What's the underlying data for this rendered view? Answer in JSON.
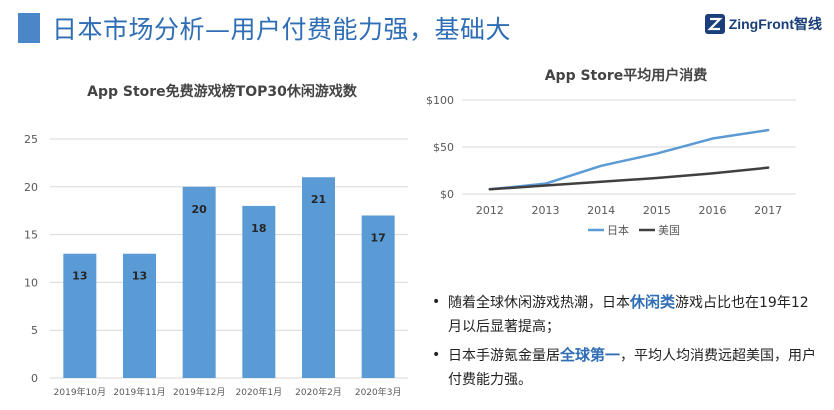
{
  "header": {
    "title": "日本市场分析—用户付费能力强，基础大"
  },
  "logo": {
    "text": "ZingFront智线",
    "icon": "zingfront-logo-icon"
  },
  "chart_data": [
    {
      "type": "bar",
      "title": "App Store免费游戏榜TOP30休闲游戏数",
      "categories": [
        "2019年10月",
        "2019年11月",
        "2019年12月",
        "2020年1月",
        "2020年2月",
        "2020年3月"
      ],
      "values": [
        13,
        13,
        20,
        18,
        21,
        17
      ],
      "yticks": [
        "0",
        "5",
        "10",
        "15",
        "20",
        "25"
      ],
      "ylim": [
        0,
        25
      ],
      "grid": true,
      "color": "#5b9bd5"
    },
    {
      "type": "line",
      "title": "App Store平均用户消费",
      "x": [
        "2012",
        "2013",
        "2014",
        "2015",
        "2016",
        "2017"
      ],
      "yticks": [
        "$0",
        "$50",
        "$100"
      ],
      "ylim": [
        0,
        100
      ],
      "grid": true,
      "legend": "bottom",
      "series": [
        {
          "name": "日本",
          "values": [
            5,
            11,
            30,
            43,
            59,
            68
          ],
          "color": "#5b9bd5"
        },
        {
          "name": "美国",
          "values": [
            5,
            9,
            13,
            17,
            22,
            28
          ],
          "color": "#404040"
        }
      ]
    }
  ],
  "bullets": [
    {
      "dot": "•",
      "before": "随着全球休闲游戏热潮，日本",
      "highlight": "休闲类",
      "after": "游戏占比也在19年12月以后显著提高；"
    },
    {
      "dot": "•",
      "before": "日本手游氪金量居",
      "highlight": "全球第一",
      "after": "，平均人均消费远超美国，用户付费能力强。"
    }
  ]
}
